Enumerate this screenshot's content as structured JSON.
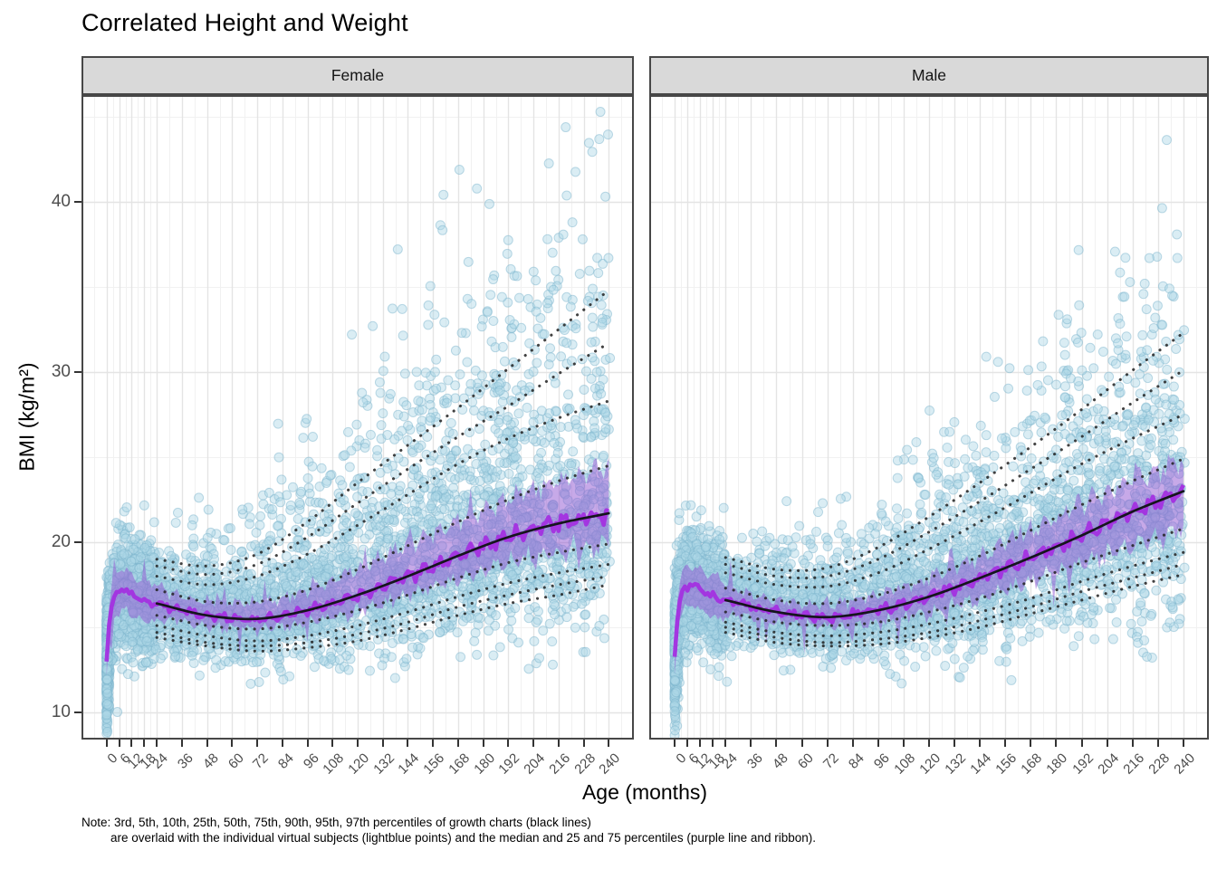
{
  "chart_data": {
    "type": "scatter",
    "title": "Correlated Height and Weight",
    "xlabel": "Age (months)",
    "ylabel": "BMI (kg/m²)",
    "note_lines": [
      "Note: 3rd, 5th, 10th, 25th, 50th, 75th, 90th, 95th, 97th percentiles of growth charts (black lines)",
      "are overlaid with the individual virtual subjects (lightblue points) and the median and 25 and 75 percentiles (purple line and ribbon)."
    ],
    "facets": [
      "Female",
      "Male"
    ],
    "x_ticks": [
      0,
      6,
      12,
      18,
      24,
      36,
      48,
      60,
      72,
      84,
      96,
      108,
      120,
      132,
      144,
      156,
      168,
      180,
      192,
      204,
      216,
      228,
      240
    ],
    "y_ticks": [
      10,
      20,
      30,
      40
    ],
    "y_minor_ticks": [
      15,
      25,
      35,
      45
    ],
    "xlim": [
      0,
      240
    ],
    "ylim": [
      8.4,
      46.3
    ],
    "grid": "major+minor",
    "legend": "none",
    "percentiles": {
      "labels": [
        "3rd",
        "5th",
        "10th",
        "25th",
        "50th",
        "75th",
        "90th",
        "95th",
        "97th"
      ],
      "ages": [
        24,
        48,
        72,
        96,
        120,
        144,
        168,
        192,
        216,
        240
      ],
      "female": {
        "p3": [
          14.4,
          13.9,
          13.6,
          13.8,
          14.2,
          14.9,
          15.7,
          16.4,
          16.9,
          17.5
        ],
        "p5": [
          14.7,
          14.1,
          13.9,
          14.1,
          14.6,
          15.3,
          16.2,
          16.9,
          17.5,
          18.0
        ],
        "p10": [
          15.1,
          14.5,
          14.2,
          14.5,
          15.1,
          15.9,
          16.8,
          17.6,
          18.2,
          18.7
        ],
        "p25": [
          15.7,
          15.1,
          14.9,
          15.3,
          16.0,
          16.9,
          17.9,
          18.8,
          19.4,
          19.9
        ],
        "p50": [
          16.4,
          15.7,
          15.5,
          16.0,
          16.9,
          18.0,
          19.2,
          20.3,
          21.1,
          21.7
        ],
        "p75": [
          17.2,
          16.5,
          16.5,
          17.2,
          18.4,
          19.8,
          21.2,
          22.5,
          23.6,
          24.5
        ],
        "p90": [
          18.0,
          17.5,
          18.0,
          19.3,
          21.0,
          22.8,
          24.6,
          26.1,
          27.3,
          28.3
        ],
        "p95": [
          18.6,
          18.1,
          18.7,
          20.3,
          22.3,
          24.3,
          26.2,
          28.0,
          29.9,
          31.7
        ],
        "p97": [
          19.0,
          18.6,
          19.3,
          21.2,
          23.5,
          25.7,
          27.9,
          30.2,
          32.5,
          34.8
        ]
      },
      "male": {
        "p3": [
          14.7,
          14.1,
          13.9,
          14.0,
          14.4,
          15.0,
          15.8,
          16.6,
          17.4,
          18.1
        ],
        "p5": [
          15.0,
          14.4,
          14.1,
          14.3,
          14.7,
          15.4,
          16.2,
          17.1,
          17.9,
          18.7
        ],
        "p10": [
          15.3,
          14.7,
          14.5,
          14.7,
          15.2,
          15.9,
          16.7,
          17.7,
          18.6,
          19.4
        ],
        "p25": [
          15.9,
          15.3,
          15.1,
          15.3,
          15.9,
          16.7,
          17.7,
          18.8,
          19.8,
          20.8
        ],
        "p50": [
          16.6,
          15.9,
          15.6,
          16.0,
          16.8,
          17.9,
          19.1,
          20.4,
          21.8,
          23.0
        ],
        "p75": [
          17.3,
          16.6,
          16.4,
          16.9,
          17.9,
          19.2,
          20.7,
          22.2,
          23.6,
          24.9
        ],
        "p90": [
          18.2,
          17.5,
          17.4,
          18.2,
          19.6,
          21.2,
          22.9,
          24.6,
          26.1,
          27.5
        ],
        "p95": [
          18.7,
          18.0,
          18.0,
          19.0,
          20.6,
          22.4,
          24.3,
          26.2,
          28.2,
          30.1
        ],
        "p97": [
          19.1,
          18.4,
          18.5,
          19.7,
          21.5,
          23.5,
          25.6,
          27.8,
          30.1,
          32.3
        ]
      }
    },
    "infant_median": {
      "ages": [
        0,
        0.5,
        1,
        2,
        3,
        4,
        6,
        8,
        10,
        12,
        15,
        18,
        21,
        24
      ],
      "female": [
        13.2,
        14.0,
        14.9,
        15.9,
        16.5,
        16.8,
        17.1,
        17.2,
        17.1,
        16.9,
        16.7,
        16.5,
        16.5,
        16.4
      ],
      "male": [
        13.4,
        14.2,
        15.1,
        16.2,
        16.8,
        17.1,
        17.4,
        17.5,
        17.4,
        17.2,
        17.0,
        16.8,
        16.7,
        16.6
      ]
    },
    "scatter_points": {
      "per_facet_estimate": 4400,
      "radius_px": 5
    },
    "colors": {
      "points_fill": "#ADD8E6",
      "points_opacity": 0.45,
      "ribbon": "rgba(148,90,210,0.52)",
      "median_line": "rgba(163,48,224,0.95)",
      "smooth_line": "#15151d",
      "percentile_dots": "rgba(33,33,33,0.85)",
      "strip_bg": "#d9d9d9",
      "panel_border": "#474747",
      "grid_major": "#e4e4e4",
      "grid_minor": "#f1f1f1",
      "axis_text": "#4d4d4d"
    }
  }
}
